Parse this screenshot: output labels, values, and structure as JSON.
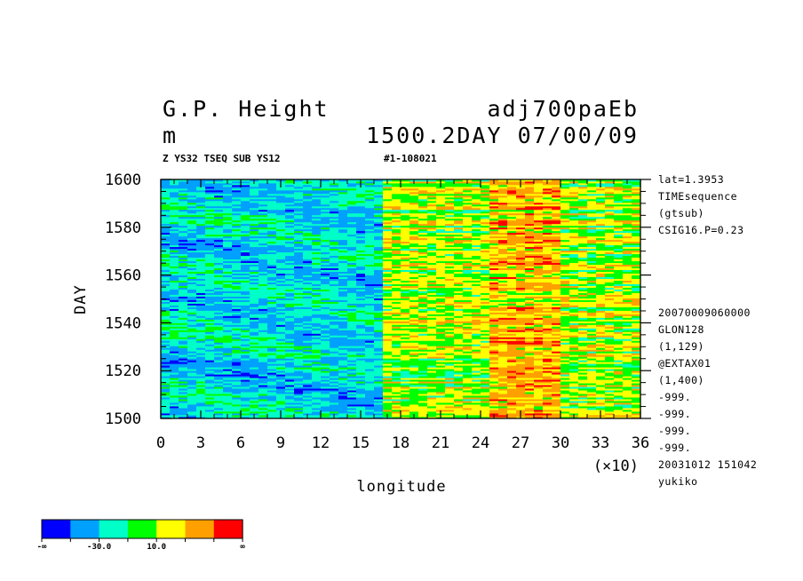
{
  "header": {
    "title_left": "G.P. Height",
    "title_right": "adj700paEb",
    "units": "m",
    "time_label": "1500.2DAY 07/00/09",
    "subtitle_left": "Z YS32 TSEQ SUB YS12",
    "subtitle_right": "#1-108021"
  },
  "side_info": [
    "lat=1.3953",
    "TIMEsequence",
    "(gtsub)",
    "CSIG16.P=0.23"
  ],
  "side_meta": [
    "20070009060000",
    "GLON128",
    "(1,129)",
    "@EXTAX01",
    "(1,400)",
    "-999.",
    "-999.",
    "-999.",
    "-999.",
    "20031012 151042",
    "yukiko"
  ],
  "colorbar": {
    "colors": [
      "#0000ff",
      "#00a0ff",
      "#00ffc8",
      "#00ff00",
      "#ffff00",
      "#ffa000",
      "#ff0000"
    ],
    "labels": [
      {
        "text": "-∞",
        "index": 0
      },
      {
        "text": "-30.0",
        "index": 2
      },
      {
        "text": "10.0",
        "index": 4
      },
      {
        "text": "∞",
        "index": 7
      }
    ]
  },
  "chart_data": {
    "type": "heatmap",
    "xlabel": "longitude",
    "ylabel": "DAY",
    "x_multiplier": "(×10)",
    "xlim": [
      0,
      36
    ],
    "ylim": [
      1500,
      1600
    ],
    "xticks": [
      "0",
      "3",
      "6",
      "9",
      "12",
      "15",
      "18",
      "21",
      "24",
      "27",
      "30",
      "33",
      "36"
    ],
    "yticks": [
      "1500",
      "1520",
      "1540",
      "1560",
      "1580",
      "1600"
    ],
    "field_pattern": {
      "description_hidden": false,
      "low_region_lon": [
        0,
        17
      ],
      "high_region_lon": [
        17,
        36
      ],
      "max_region_lon": [
        25,
        30
      ]
    }
  }
}
